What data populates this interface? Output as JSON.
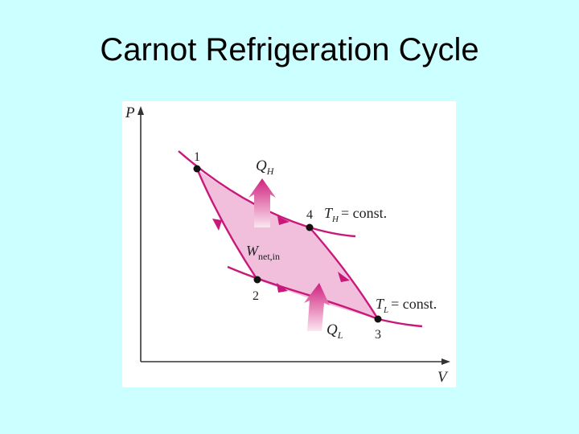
{
  "slide": {
    "title": "Carnot Refrigeration Cycle"
  },
  "diagram": {
    "axes": {
      "y_label": "P",
      "x_label": "V"
    },
    "states": [
      {
        "id": "1"
      },
      {
        "id": "2"
      },
      {
        "id": "3"
      },
      {
        "id": "4"
      }
    ],
    "isotherms": {
      "high": {
        "symbol": "T",
        "subscript": "H",
        "text": "= const."
      },
      "low": {
        "symbol": "T",
        "subscript": "L",
        "text": "= const."
      }
    },
    "heat": {
      "out": {
        "symbol": "Q",
        "subscript": "H"
      },
      "in": {
        "symbol": "Q",
        "subscript": "L"
      }
    },
    "work": {
      "symbol": "W",
      "subscript": "net,in"
    },
    "colors": {
      "curve": "#c8197a",
      "fill": "#f0b8d8",
      "arrow_top": "#d0207e",
      "arrow_bottom": "#fbe6f1",
      "axis": "#333333",
      "background": "#ccffff"
    }
  }
}
